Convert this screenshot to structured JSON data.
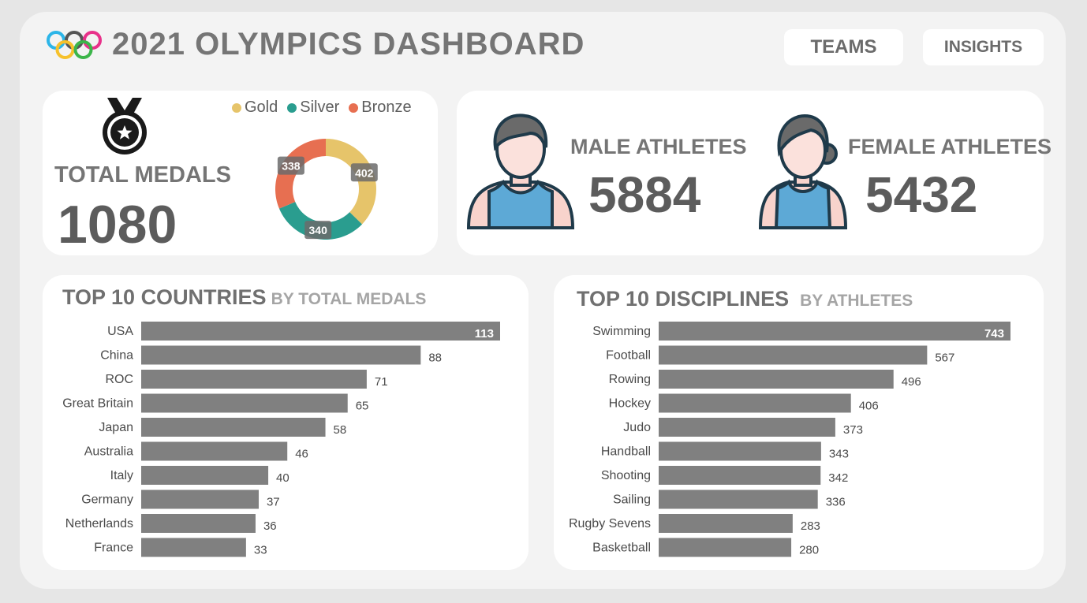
{
  "header": {
    "title": "2021 OLYMPICS DASHBOARD",
    "nav": {
      "teams_label": "TEAMS",
      "insights_label": "INSIGHTS"
    },
    "logo_icon": "olympic-rings-icon"
  },
  "medals": {
    "label": "TOTAL MEDALS",
    "total": "1080",
    "icon": "medal-icon"
  },
  "athletes": {
    "male_label": "MALE ATHLETES",
    "male_value": "5884",
    "female_label": "FEMALE ATHLETES",
    "female_value": "5432"
  },
  "colors": {
    "gold": "#e6c46a",
    "silver": "#2a9d8f",
    "bronze": "#e76f51",
    "bar": "#808080"
  },
  "chart_data": [
    {
      "type": "pie",
      "donut": true,
      "legend_position": "top",
      "labels": [
        "Gold",
        "Silver",
        "Bronze"
      ],
      "values": [
        402,
        340,
        338
      ],
      "value_labels": [
        "402",
        "340",
        "338"
      ]
    },
    {
      "type": "bar",
      "orientation": "horizontal",
      "title": "TOP 10 COUNTRIES",
      "subtitle": "BY TOTAL MEDALS",
      "categories": [
        "USA",
        "China",
        "ROC",
        "Great Britain",
        "Japan",
        "Australia",
        "Italy",
        "Germany",
        "Netherlands",
        "France"
      ],
      "values": [
        113,
        88,
        71,
        65,
        58,
        46,
        40,
        37,
        36,
        33
      ],
      "value_labels": [
        "113",
        "88",
        "71",
        "65",
        "58",
        "46",
        "40",
        "37",
        "36",
        "33"
      ],
      "xlim": [
        0,
        113
      ]
    },
    {
      "type": "bar",
      "orientation": "horizontal",
      "title": "TOP 10 DISCIPLINES",
      "subtitle": "BY ATHLETES",
      "categories": [
        "Swimming",
        "Football",
        "Rowing",
        "Hockey",
        "Judo",
        "Handball",
        "Shooting",
        "Sailing",
        "Rugby Sevens",
        "Basketball"
      ],
      "values": [
        743,
        567,
        496,
        406,
        373,
        343,
        342,
        336,
        283,
        280
      ],
      "value_labels": [
        "743",
        "567",
        "496",
        "406",
        "373",
        "343",
        "342",
        "336",
        "283",
        "280"
      ],
      "xlim": [
        0,
        743
      ]
    }
  ]
}
